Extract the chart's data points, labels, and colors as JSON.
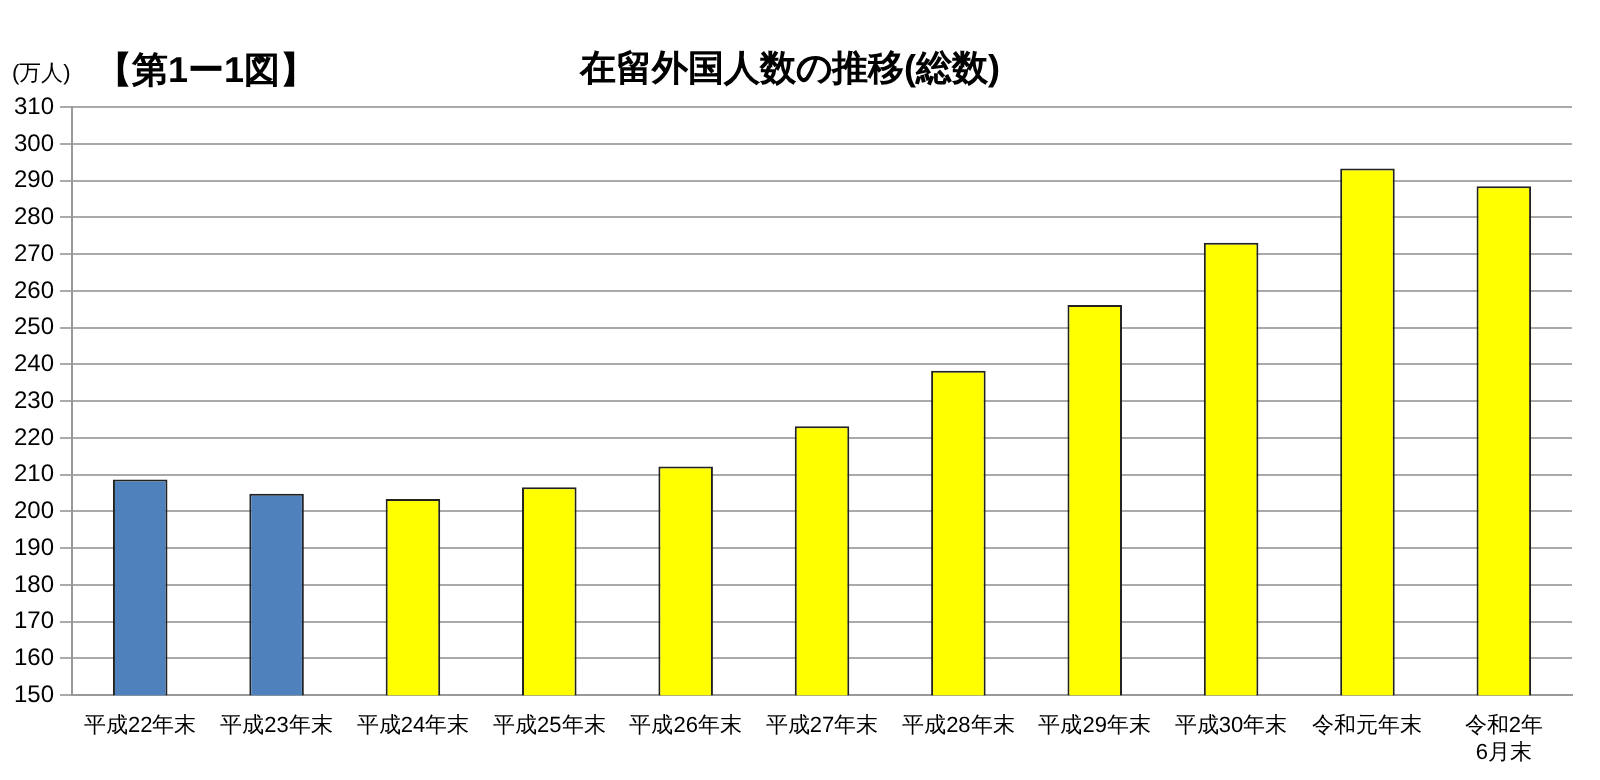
{
  "chart_data": {
    "type": "bar",
    "title": "在留外国人数の推移(総数)",
    "ylabel": "(万人)",
    "annotations": [
      "【第1ー1図】"
    ],
    "categories": [
      "平成22年末",
      "平成23年末",
      "平成24年末",
      "平成25年末",
      "平成26年末",
      "平成27年末",
      "平成28年末",
      "平成29年末",
      "平成30年末",
      "令和元年末",
      "令和2年\n6月末"
    ],
    "values": [
      208.7,
      204.8,
      203.4,
      206.6,
      212.2,
      223.2,
      238.3,
      256.2,
      273.1,
      293.3,
      288.5
    ],
    "colors": [
      "#4f81bd",
      "#4f81bd",
      "#ffff00",
      "#ffff00",
      "#ffff00",
      "#ffff00",
      "#ffff00",
      "#ffff00",
      "#ffff00",
      "#ffff00",
      "#ffff00"
    ],
    "ylim": [
      150,
      310
    ],
    "yticks": [
      150,
      160,
      170,
      180,
      190,
      200,
      210,
      220,
      230,
      240,
      250,
      260,
      270,
      280,
      290,
      300,
      310
    ],
    "grid": "y",
    "legend": false
  }
}
